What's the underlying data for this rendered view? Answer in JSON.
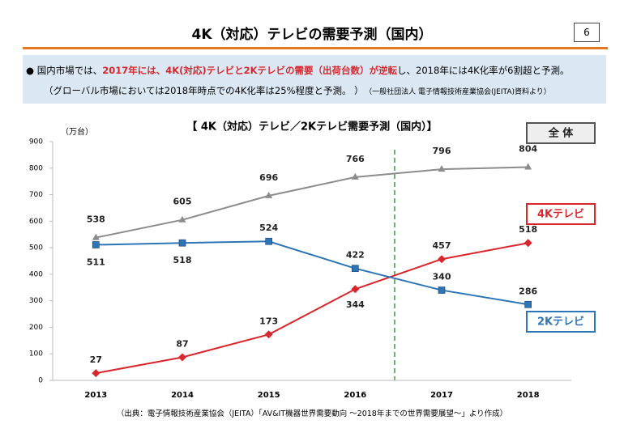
{
  "slide": {
    "title": "4K（対応）テレビの需要予測（国内）",
    "page_number": 6,
    "summary": {
      "before": "国内市場では、",
      "highlight": "2017年には、4K(対応)テレビと2Kテレビの需要（出荷台数）が逆転",
      "after": "し、2018年には4K化率が6割超と予測。",
      "note": "（グローバル市場においては2018年時点での4K化率は25%程度と予測。 ）",
      "reference": "（一般社団法人 電子情報技術産業協会(JEITA)資料より）"
    },
    "source": "（出典：電子情報技術産業協会（JEITA）「AV&IT機器世界需要動向 ～2018年までの世界需要展望～」より作成）"
  },
  "chart_data": {
    "type": "line",
    "title": "【 4K（対応）テレビ／2Kテレビ需要予測（国内）】",
    "y_label": "（万台）",
    "categories": [
      "2013",
      "2014",
      "2015",
      "2016",
      "2017",
      "2018"
    ],
    "ylim": [
      0,
      900
    ],
    "yticks": [
      0,
      100,
      200,
      300,
      400,
      500,
      600,
      700,
      800,
      900
    ],
    "series": [
      {
        "name": "全 体",
        "color": "#8c8c8c",
        "values": [
          538,
          605,
          696,
          766,
          796,
          804
        ]
      },
      {
        "name": "4Kテレビ",
        "color": "#d9262c",
        "values": [
          27,
          87,
          173,
          344,
          457,
          518
        ]
      },
      {
        "name": "2Kテレビ",
        "color": "#2e75b6",
        "values": [
          511,
          518,
          524,
          422,
          340,
          286
        ]
      }
    ]
  }
}
